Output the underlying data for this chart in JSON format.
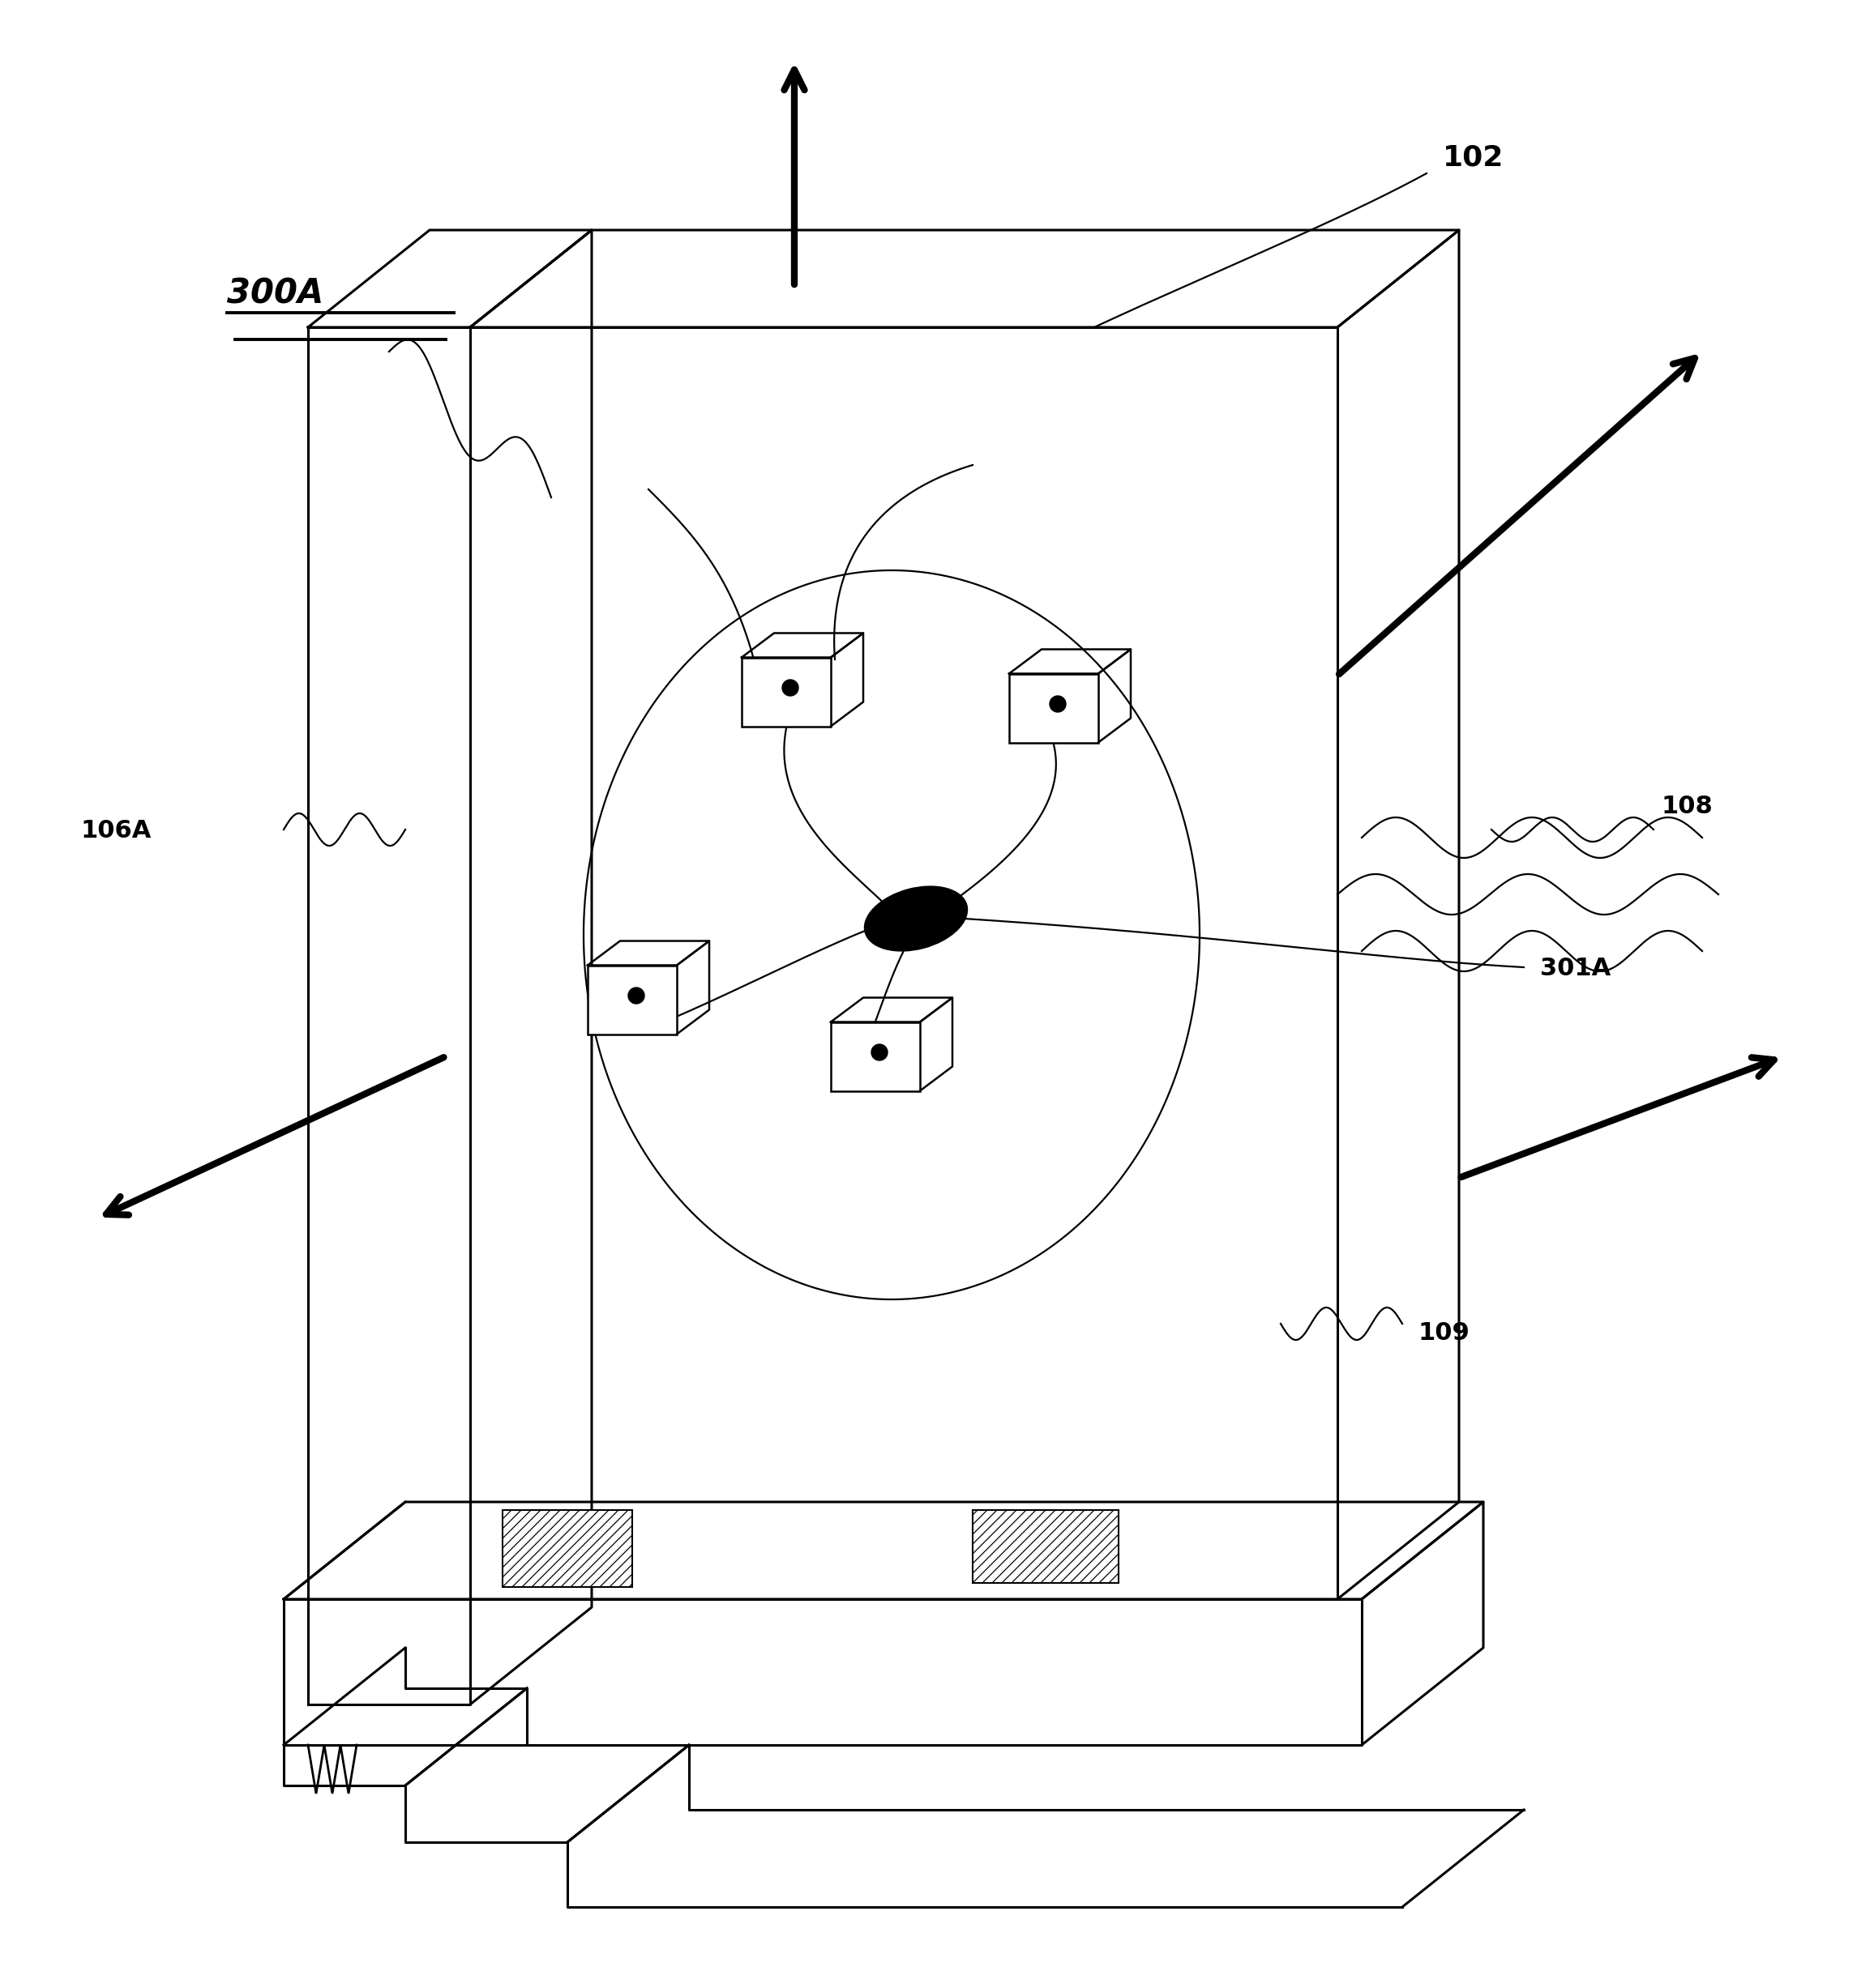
{
  "bg_color": "#ffffff",
  "line_color": "#000000",
  "fig_width": 23.12,
  "fig_height": 24.54,
  "label_300A": "300A",
  "label_102": "102",
  "label_106A": "106A",
  "label_108": "108",
  "label_301A": "301A",
  "label_109": "109",
  "lw_thin": 1.6,
  "lw_med": 2.2,
  "lw_thick": 6.0,
  "arrow_mut_scale": 40
}
